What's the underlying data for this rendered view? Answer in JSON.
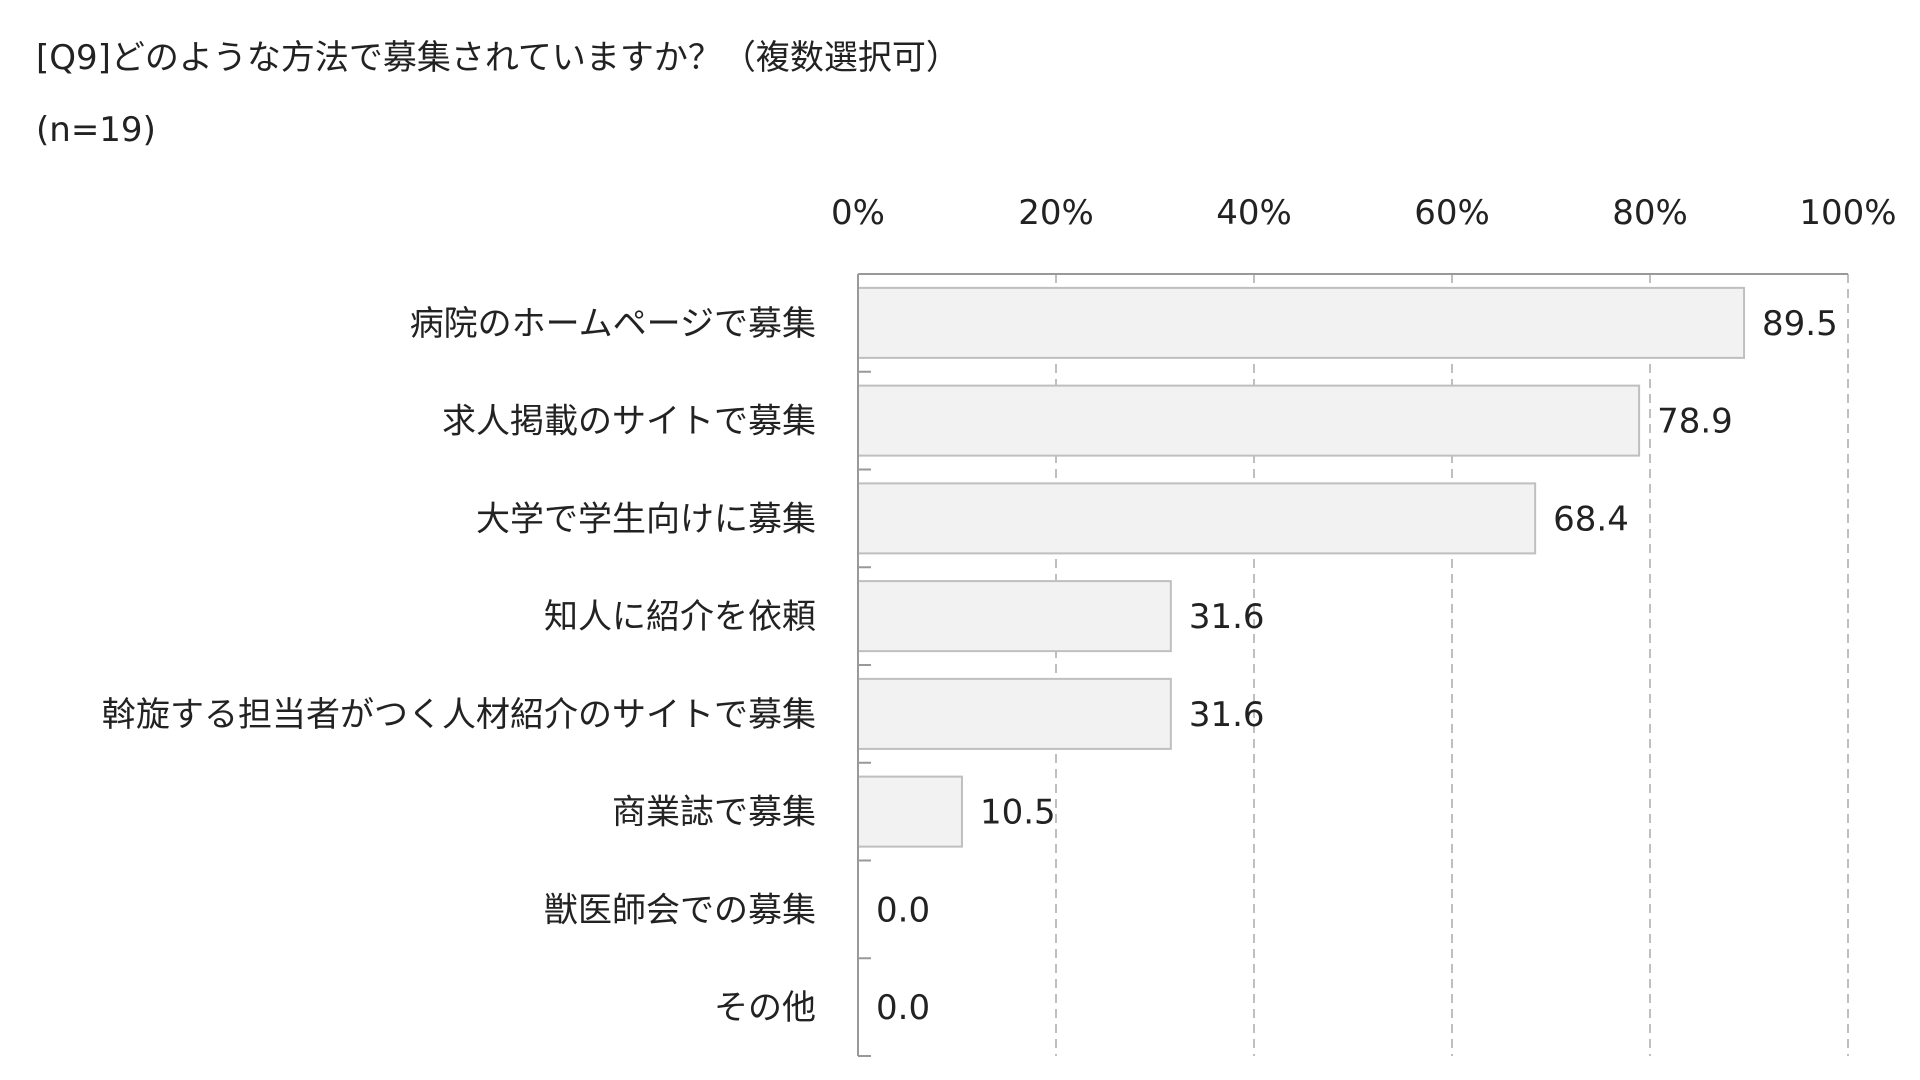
{
  "header": {
    "title": "[Q9]どのような方法で募集されていますか？（複数選択可）",
    "subtitle": "(n=19)"
  },
  "chart_data": {
    "type": "bar",
    "orientation": "horizontal",
    "title": "[Q9]どのような方法で募集されていますか？（複数選択可）",
    "subtitle": "(n=19)",
    "categories": [
      "病院のホームページで募集",
      "求人掲載のサイトで募集",
      "大学で学生向けに募集",
      "知人に紹介を依頼",
      "斡旋する担当者がつく人材紹介のサイトで募集",
      "商業誌で募集",
      "獣医師会での募集",
      "その他"
    ],
    "values": [
      89.5,
      78.9,
      68.4,
      31.6,
      31.6,
      10.5,
      0.0,
      0.0
    ],
    "value_labels": [
      "89.5",
      "78.9",
      "68.4",
      "31.6",
      "31.6",
      "10.5",
      "0.0",
      "0.0"
    ],
    "xlim": [
      0,
      100
    ],
    "x_ticks": [
      0,
      20,
      40,
      60,
      80,
      100
    ],
    "x_tick_labels": [
      "0%",
      "20%",
      "40%",
      "60%",
      "80%",
      "100%"
    ],
    "axis_position": "top",
    "grid": true,
    "legend": "none",
    "colors": {
      "bar_fill": "#f2f2f2",
      "bar_stroke": "#bfbfbf",
      "grid": "#bfbfbf",
      "axis": "#999999"
    }
  }
}
